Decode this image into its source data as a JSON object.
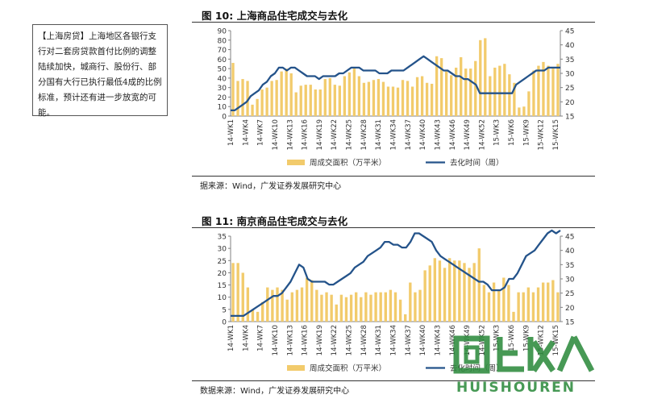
{
  "note": {
    "text": "【上海房贷】上海地区各银行支行对二套房贷款首付比例的调整陆续加快，城商行、股份行、部分国有大行已执行最低4成的比例标准，预计还有进一步放宽的可能。"
  },
  "watermark": {
    "main": "回收人",
    "sub": "HUISHOUREN"
  },
  "colors": {
    "bar": "#F2CB6C",
    "line": "#24538A",
    "axis": "#808080"
  },
  "chart_data": [
    {
      "type": "bar",
      "title": "图 10:  上海商品住宅成交与去化",
      "source": "据来源：Wind，广发证券发展研究中心",
      "legend": [
        "周成交面积（万平米）",
        "去化时间（周）"
      ],
      "legend_position": "bottom",
      "tick_labels": [
        "14-WK1",
        "14-WK4",
        "14-WK7",
        "14-WK10",
        "14-WK13",
        "14-WK16",
        "14-WK19",
        "14-WK22",
        "14-WK25",
        "14-WK28",
        "14-WK31",
        "14-WK34",
        "14-WK37",
        "14-WK40",
        "14-WK43",
        "14-WK46",
        "14-WK49",
        "14-WK52",
        "15-WK3",
        "15-WK6",
        "15-WK9",
        "15-WK12",
        "15-WK15"
      ],
      "y_left": {
        "min": 0,
        "max": 90,
        "ticks": [
          0,
          10,
          20,
          30,
          40,
          50,
          60,
          70,
          80,
          90
        ]
      },
      "y_right": {
        "min": 15,
        "max": 45,
        "ticks": [
          15,
          20,
          25,
          30,
          35,
          40,
          45
        ]
      },
      "grid": false,
      "series": [
        {
          "name": "周成交面积（万平米）",
          "axis": "left",
          "type": "bar",
          "values": [
            56,
            37,
            39,
            37,
            12,
            18,
            28,
            30,
            37,
            38,
            47,
            50,
            45,
            25,
            32,
            33,
            33,
            28,
            28,
            39,
            40,
            33,
            32,
            42,
            46,
            50,
            42,
            35,
            36,
            38,
            39,
            36,
            31,
            31,
            30,
            38,
            37,
            31,
            41,
            42,
            35,
            34,
            63,
            61,
            47,
            43,
            51,
            62,
            50,
            50,
            58,
            80,
            82,
            42,
            51,
            53,
            55,
            44,
            35,
            9,
            10,
            26,
            48,
            53,
            57,
            53,
            50,
            55
          ]
        },
        {
          "name": "去化时间（周）",
          "axis": "right",
          "type": "line",
          "values": [
            17,
            17,
            18,
            19,
            20,
            22,
            23,
            24,
            26,
            27,
            29,
            30,
            32,
            32,
            31,
            32,
            32,
            31,
            30,
            29,
            29,
            29,
            28,
            29,
            29,
            29,
            29,
            30,
            30,
            31,
            32,
            32,
            32,
            31,
            31,
            31,
            31,
            30,
            30,
            30,
            31,
            31,
            31,
            31,
            32,
            33,
            34,
            35,
            36,
            35,
            34,
            33,
            32,
            31,
            31,
            30,
            29,
            29,
            28,
            28,
            27,
            26,
            23,
            23,
            23,
            23,
            23,
            23,
            23,
            23,
            23,
            26,
            27,
            28,
            29,
            30,
            31,
            31,
            31,
            32,
            32,
            32,
            32
          ]
        }
      ]
    },
    {
      "type": "bar",
      "title": "图 11:  南京商品住宅成交与去化",
      "source": "数据来源：Wind，广发证券发展研究中心",
      "legend": [
        "周成交面积（万平米）",
        "去化时间（周）"
      ],
      "legend_position": "bottom",
      "tick_labels": [
        "14-WK1",
        "14-WK4",
        "14-WK7",
        "14-WK10",
        "14-WK13",
        "14-WK16",
        "14-WK19",
        "14-WK22",
        "14-WK25",
        "14-WK28",
        "14-WK31",
        "14-WK34",
        "14-WK37",
        "14-WK40",
        "14-WK43",
        "14-WK46",
        "14-WK49",
        "14-WK52",
        "15-WK3",
        "15-WK6",
        "15-WK9",
        "15-WK12",
        "15-WK15"
      ],
      "y_left": {
        "min": 0,
        "max": 35,
        "ticks": [
          0,
          5,
          10,
          15,
          20,
          25,
          30,
          35
        ]
      },
      "y_right": {
        "min": 15,
        "max": 45,
        "ticks": [
          15,
          20,
          25,
          30,
          35,
          40,
          45
        ]
      },
      "grid": false,
      "series": [
        {
          "name": "周成交面积（万平米）",
          "axis": "left",
          "type": "bar",
          "values": [
            24,
            24,
            20,
            14,
            5,
            4,
            8,
            14,
            13,
            14,
            13,
            9,
            12,
            13,
            14,
            18,
            17,
            13,
            11,
            12,
            11,
            7,
            11,
            10,
            11,
            12,
            10,
            12,
            11,
            12,
            12,
            12,
            13,
            12,
            9,
            3,
            16,
            12,
            13,
            21,
            23,
            26,
            25,
            22,
            26,
            25,
            25,
            24,
            22,
            24,
            30,
            15,
            12,
            16,
            13,
            18,
            15,
            4,
            12,
            12,
            14,
            12,
            14,
            16,
            16,
            17,
            12
          ]
        },
        {
          "name": "去化时间（周）",
          "axis": "right",
          "type": "line",
          "values": [
            17,
            17,
            17,
            17,
            18,
            19,
            20,
            21,
            22,
            23,
            24,
            24,
            25,
            27,
            29,
            32,
            35,
            34,
            30,
            29,
            29,
            29,
            29,
            28,
            28,
            29,
            30,
            31,
            32,
            34,
            35,
            36,
            38,
            39,
            40,
            41,
            43,
            43,
            42,
            42,
            41,
            41,
            43,
            46,
            46,
            45,
            44,
            43,
            40,
            38,
            37,
            36,
            35,
            34,
            33,
            32,
            31,
            30,
            29,
            29,
            28,
            26,
            26,
            26,
            27,
            30,
            30,
            32,
            35,
            38,
            39,
            40,
            42,
            44,
            46,
            47,
            46,
            47
          ]
        }
      ]
    }
  ]
}
